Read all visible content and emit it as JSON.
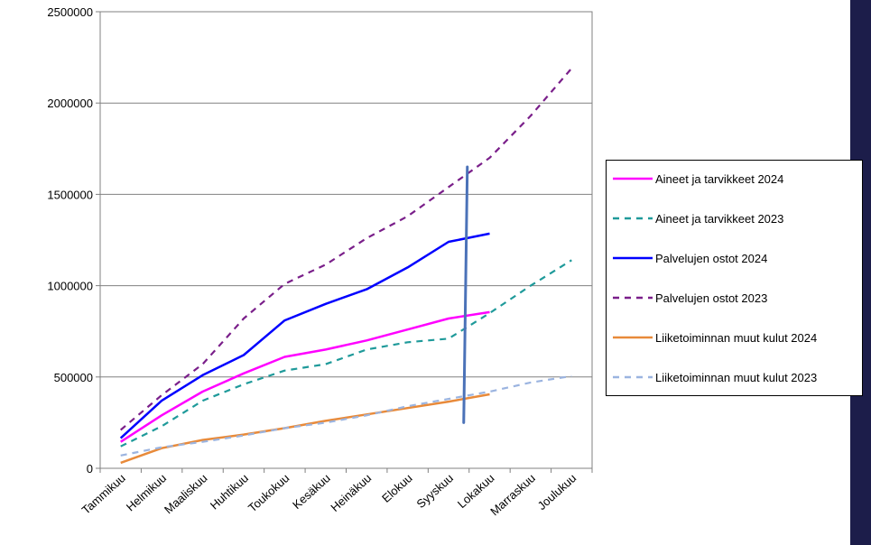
{
  "chart_data": {
    "type": "line",
    "title": "",
    "xlabel": "",
    "ylabel": "",
    "categories": [
      "Tammikuu",
      "Helmikuu",
      "Maaliskuu",
      "Huhtikuu",
      "Toukokuu",
      "Kesäkuu",
      "Heinäkuu",
      "Elokuu",
      "Syyskuu",
      "Lokakuu",
      "Marraskuu",
      "Joulukuu"
    ],
    "ylim": [
      0,
      2500000
    ],
    "yticks": [
      0,
      500000,
      1000000,
      1500000,
      2000000,
      2500000
    ],
    "ytick_labels": [
      "0",
      "500000",
      "1000000",
      "1500000",
      "2000000",
      "2500000"
    ],
    "grid": "horizontal",
    "legend_position": "right",
    "series": [
      {
        "name": "Aineet ja tarvikkeet 2024",
        "color": "#ff00ff",
        "dash": "solid",
        "values": [
          145000,
          290000,
          420000,
          520000,
          610000,
          650000,
          700000,
          760000,
          820000,
          855000,
          null,
          null
        ]
      },
      {
        "name": "Aineet ja tarvikkeet 2023",
        "color": "#1f9a9a",
        "dash": "dashed",
        "values": [
          120000,
          230000,
          370000,
          460000,
          535000,
          570000,
          650000,
          690000,
          710000,
          850000,
          1000000,
          1140000
        ]
      },
      {
        "name": "Palvelujen ostot 2024",
        "color": "#0000ff",
        "dash": "solid",
        "values": [
          165000,
          370000,
          510000,
          620000,
          810000,
          900000,
          980000,
          1100000,
          1240000,
          1285000,
          null,
          null
        ]
      },
      {
        "name": "Palvelujen ostot 2023",
        "color": "#7a1f8a",
        "dash": "dashed",
        "values": [
          210000,
          400000,
          570000,
          820000,
          1010000,
          1115000,
          1260000,
          1380000,
          1540000,
          1700000,
          1930000,
          2190000
        ]
      },
      {
        "name": "Liiketoiminnan muut kulut 2024",
        "color": "#e88a3a",
        "dash": "solid",
        "values": [
          30000,
          110000,
          155000,
          185000,
          220000,
          260000,
          295000,
          330000,
          365000,
          405000,
          null,
          null
        ]
      },
      {
        "name": "Liiketoiminnan muut kulut 2023",
        "color": "#9bb4e0",
        "dash": "dashed",
        "values": [
          70000,
          115000,
          145000,
          180000,
          220000,
          250000,
          290000,
          340000,
          380000,
          420000,
          470000,
          505000
        ]
      }
    ],
    "annotation_line": {
      "color": "#4b72b8",
      "x_between": [
        "Syyskuu",
        "Lokakuu"
      ],
      "y_range": [
        250000,
        1650000
      ]
    }
  }
}
